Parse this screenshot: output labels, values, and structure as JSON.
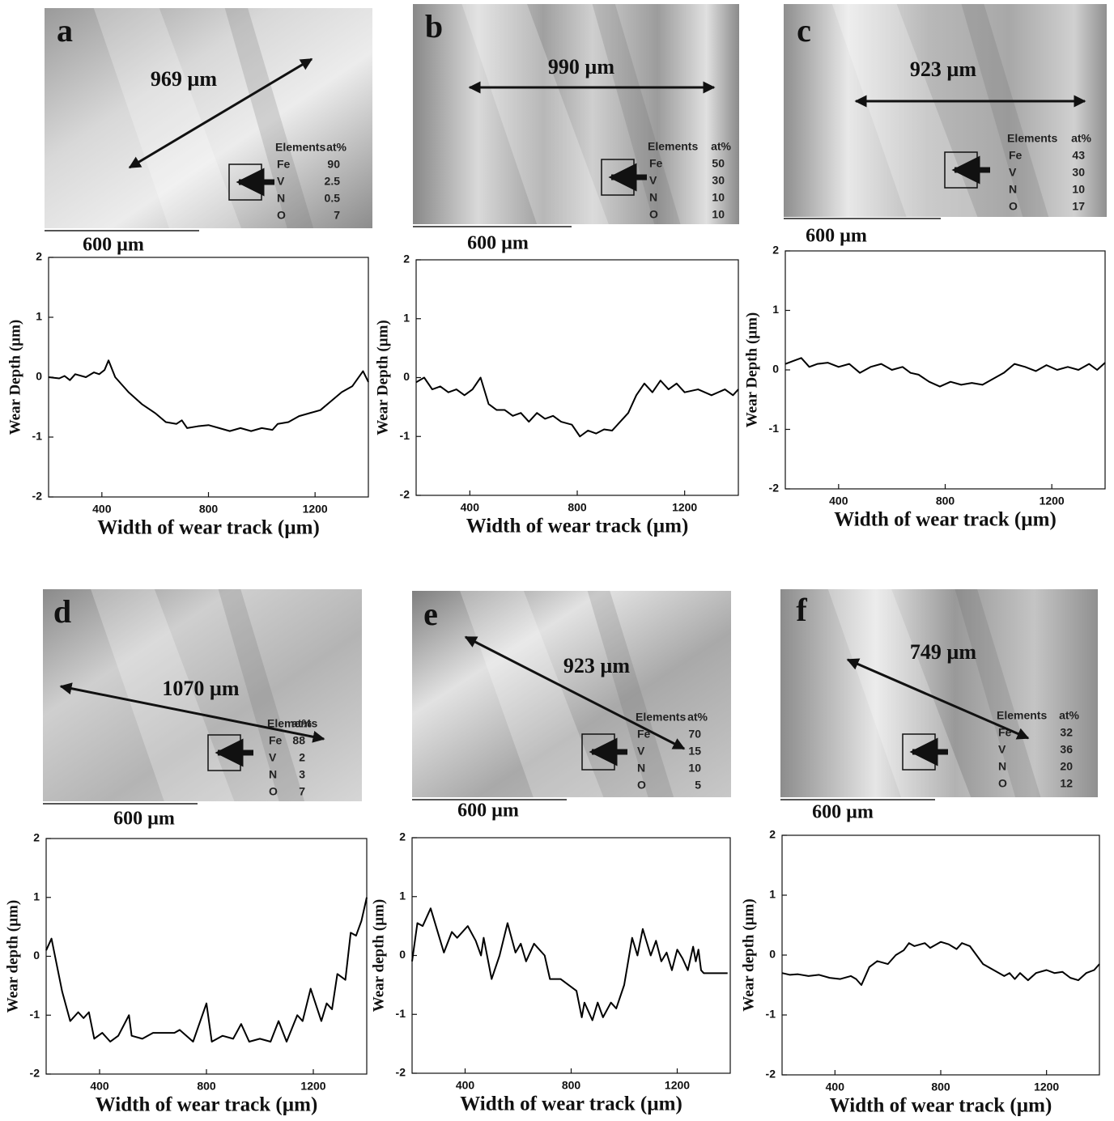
{
  "micrographs": [
    {
      "label": "a",
      "track_width": "969 µm",
      "scale_bar": "600 µm",
      "table": {
        "header": [
          "Elements",
          "at%"
        ],
        "rows": [
          [
            "Fe",
            90
          ],
          [
            "V",
            2.5
          ],
          [
            "N",
            0.5
          ],
          [
            "O",
            7
          ]
        ]
      }
    },
    {
      "label": "b",
      "track_width": "990 µm",
      "scale_bar": "600 µm",
      "table": {
        "header": [
          "Elements",
          "at%"
        ],
        "rows": [
          [
            "Fe",
            50
          ],
          [
            "V",
            30
          ],
          [
            "N",
            10
          ],
          [
            "O",
            10
          ]
        ]
      }
    },
    {
      "label": "c",
      "track_width": "923 µm",
      "scale_bar": "600 µm",
      "table": {
        "header": [
          "Elements",
          "at%"
        ],
        "rows": [
          [
            "Fe",
            43
          ],
          [
            "V",
            30
          ],
          [
            "N",
            10
          ],
          [
            "O",
            17
          ]
        ]
      }
    },
    {
      "label": "d",
      "track_width": "1070 µm",
      "scale_bar": "600 µm",
      "table": {
        "header": [
          "Elements",
          "at%"
        ],
        "rows": [
          [
            "Fe",
            88
          ],
          [
            "V",
            2
          ],
          [
            "N",
            3
          ],
          [
            "O",
            7
          ]
        ]
      }
    },
    {
      "label": "e",
      "track_width": "923 µm",
      "scale_bar": "600 µm",
      "table": {
        "header": [
          "Elements",
          "at%"
        ],
        "rows": [
          [
            "Fe",
            70
          ],
          [
            "V",
            15
          ],
          [
            "N",
            10
          ],
          [
            "O",
            5
          ]
        ]
      }
    },
    {
      "label": "f",
      "track_width": "749 µm",
      "scale_bar": "600 µm",
      "table": {
        "header": [
          "Elements",
          "at%"
        ],
        "rows": [
          [
            "Fe",
            32
          ],
          [
            "V",
            36
          ],
          [
            "N",
            20
          ],
          [
            "O",
            12
          ]
        ]
      }
    }
  ],
  "chart_data": [
    {
      "type": "line",
      "x_label": "Width of wear track (µm)",
      "y_label": "Wear Depth (µm)",
      "color": "#000000",
      "xlim": [
        200,
        1400
      ],
      "xticks": [
        400,
        800,
        1200
      ],
      "ylim": [
        -2,
        2
      ],
      "yticks": [
        -2,
        -1,
        0,
        1,
        2
      ],
      "x": [
        200,
        240,
        260,
        280,
        300,
        340,
        370,
        390,
        410,
        425,
        450,
        500,
        550,
        600,
        640,
        680,
        700,
        720,
        760,
        800,
        840,
        880,
        920,
        960,
        1000,
        1040,
        1060,
        1100,
        1140,
        1180,
        1220,
        1260,
        1300,
        1340,
        1380,
        1400
      ],
      "values": [
        0,
        -0.02,
        0.02,
        -0.05,
        0.05,
        0,
        0.08,
        0.05,
        0.12,
        0.28,
        0,
        -0.25,
        -0.45,
        -0.6,
        -0.75,
        -0.78,
        -0.72,
        -0.85,
        -0.82,
        -0.8,
        -0.85,
        -0.9,
        -0.85,
        -0.9,
        -0.85,
        -0.88,
        -0.78,
        -0.75,
        -0.65,
        -0.6,
        -0.55,
        -0.4,
        -0.25,
        -0.15,
        0.1,
        -0.08
      ]
    },
    {
      "type": "line",
      "x_label": "Width of wear track (µm)",
      "y_label": "Wear Depth (µm)",
      "color": "#000000",
      "xlim": [
        200,
        1400
      ],
      "xticks": [
        400,
        800,
        1200
      ],
      "ylim": [
        -2,
        2
      ],
      "yticks": [
        -2,
        -1,
        0,
        1,
        2
      ],
      "x": [
        200,
        230,
        260,
        290,
        320,
        350,
        380,
        410,
        440,
        470,
        500,
        530,
        560,
        590,
        620,
        650,
        680,
        710,
        740,
        780,
        810,
        840,
        870,
        900,
        930,
        960,
        990,
        1020,
        1050,
        1080,
        1110,
        1140,
        1170,
        1200,
        1250,
        1300,
        1350,
        1380,
        1400
      ],
      "values": [
        -0.08,
        0,
        -0.2,
        -0.15,
        -0.25,
        -0.2,
        -0.3,
        -0.2,
        0,
        -0.45,
        -0.55,
        -0.55,
        -0.65,
        -0.6,
        -0.75,
        -0.6,
        -0.7,
        -0.65,
        -0.75,
        -0.8,
        -1.0,
        -0.9,
        -0.95,
        -0.88,
        -0.9,
        -0.75,
        -0.6,
        -0.3,
        -0.1,
        -0.25,
        -0.05,
        -0.2,
        -0.1,
        -0.25,
        -0.2,
        -0.3,
        -0.2,
        -0.3,
        -0.2
      ]
    },
    {
      "type": "line",
      "x_label": "Width of wear track (µm)",
      "y_label": "Wear Depth (µm)",
      "color": "#000000",
      "xlim": [
        200,
        1400
      ],
      "xticks": [
        400,
        800,
        1200
      ],
      "ylim": [
        -2,
        2
      ],
      "yticks": [
        -2,
        -1,
        0,
        1,
        2
      ],
      "x": [
        200,
        230,
        260,
        290,
        320,
        360,
        400,
        440,
        480,
        520,
        560,
        600,
        640,
        670,
        700,
        740,
        780,
        820,
        860,
        900,
        940,
        980,
        1020,
        1060,
        1100,
        1140,
        1180,
        1220,
        1260,
        1300,
        1340,
        1370,
        1400
      ],
      "values": [
        0.1,
        0.15,
        0.2,
        0.05,
        0.1,
        0.12,
        0.05,
        0.1,
        -0.05,
        0.05,
        0.1,
        0,
        0.05,
        -0.05,
        -0.08,
        -0.2,
        -0.28,
        -0.2,
        -0.25,
        -0.22,
        -0.25,
        -0.15,
        -0.05,
        0.1,
        0.05,
        -0.02,
        0.08,
        0,
        0.05,
        0,
        0.1,
        0,
        0.12
      ]
    },
    {
      "type": "line",
      "x_label": "Width of wear track (µm)",
      "y_label": "Wear depth (µm)",
      "color": "#000000",
      "xlim": [
        200,
        1400
      ],
      "xticks": [
        400,
        800,
        1200
      ],
      "ylim": [
        -2,
        2
      ],
      "yticks": [
        -2,
        -1,
        0,
        1,
        2
      ],
      "x": [
        200,
        220,
        260,
        290,
        320,
        340,
        360,
        380,
        410,
        440,
        470,
        510,
        520,
        560,
        600,
        680,
        700,
        750,
        800,
        820,
        860,
        900,
        930,
        960,
        1000,
        1040,
        1070,
        1100,
        1140,
        1160,
        1190,
        1230,
        1250,
        1270,
        1290,
        1320,
        1340,
        1360,
        1380,
        1400
      ],
      "values": [
        0.1,
        0.3,
        -0.6,
        -1.1,
        -0.95,
        -1.05,
        -0.95,
        -1.4,
        -1.3,
        -1.45,
        -1.35,
        -1.0,
        -1.35,
        -1.4,
        -1.3,
        -1.3,
        -1.25,
        -1.45,
        -0.8,
        -1.45,
        -1.35,
        -1.4,
        -1.15,
        -1.45,
        -1.4,
        -1.45,
        -1.1,
        -1.45,
        -1.0,
        -1.1,
        -0.55,
        -1.1,
        -0.8,
        -0.9,
        -0.3,
        -0.4,
        0.4,
        0.35,
        0.6,
        1.0
      ]
    },
    {
      "type": "line",
      "x_label": "Width of wear track (µm)",
      "y_label": "Wear depth (µm)",
      "color": "#000000",
      "xlim": [
        200,
        1400
      ],
      "xticks": [
        400,
        800,
        1200
      ],
      "ylim": [
        -2,
        2
      ],
      "yticks": [
        -2,
        -1,
        0,
        1,
        2
      ],
      "x": [
        200,
        220,
        240,
        270,
        300,
        320,
        350,
        370,
        410,
        440,
        460,
        470,
        500,
        530,
        560,
        590,
        610,
        630,
        660,
        700,
        720,
        760,
        820,
        840,
        850,
        880,
        900,
        920,
        950,
        970,
        1000,
        1030,
        1050,
        1070,
        1100,
        1120,
        1140,
        1160,
        1180,
        1200,
        1220,
        1240,
        1260,
        1270,
        1280,
        1290,
        1300,
        1390
      ],
      "values": [
        -0.1,
        0.55,
        0.5,
        0.8,
        0.35,
        0.05,
        0.4,
        0.3,
        0.5,
        0.25,
        0,
        0.3,
        -0.4,
        0,
        0.55,
        0.05,
        0.2,
        -0.1,
        0.2,
        0,
        -0.4,
        -0.4,
        -0.6,
        -1.05,
        -0.8,
        -1.1,
        -0.8,
        -1.05,
        -0.8,
        -0.9,
        -0.5,
        0.3,
        0,
        0.45,
        0,
        0.25,
        -0.1,
        0.05,
        -0.25,
        0.1,
        -0.05,
        -0.25,
        0.15,
        -0.1,
        0.1,
        -0.25,
        -0.3,
        -0.3
      ]
    },
    {
      "type": "line",
      "x_label": "Width of wear track (µm)",
      "y_label": "Wear depth (µm)",
      "color": "#000000",
      "xlim": [
        200,
        1400
      ],
      "xticks": [
        400,
        800,
        1200
      ],
      "ylim": [
        -2,
        2
      ],
      "yticks": [
        -2,
        -1,
        0,
        1,
        2
      ],
      "x": [
        200,
        230,
        260,
        300,
        340,
        380,
        420,
        460,
        480,
        500,
        530,
        560,
        600,
        630,
        660,
        680,
        700,
        740,
        760,
        800,
        830,
        860,
        880,
        910,
        960,
        1000,
        1040,
        1060,
        1080,
        1100,
        1130,
        1160,
        1200,
        1230,
        1260,
        1290,
        1320,
        1350,
        1380,
        1400
      ],
      "values": [
        -0.3,
        -0.33,
        -0.32,
        -0.35,
        -0.33,
        -0.38,
        -0.4,
        -0.35,
        -0.4,
        -0.5,
        -0.2,
        -0.1,
        -0.15,
        0,
        0.08,
        0.2,
        0.15,
        0.2,
        0.12,
        0.22,
        0.18,
        0.1,
        0.2,
        0.15,
        -0.15,
        -0.25,
        -0.35,
        -0.3,
        -0.4,
        -0.3,
        -0.42,
        -0.3,
        -0.25,
        -0.3,
        -0.28,
        -0.38,
        -0.42,
        -0.3,
        -0.25,
        -0.15
      ]
    }
  ]
}
